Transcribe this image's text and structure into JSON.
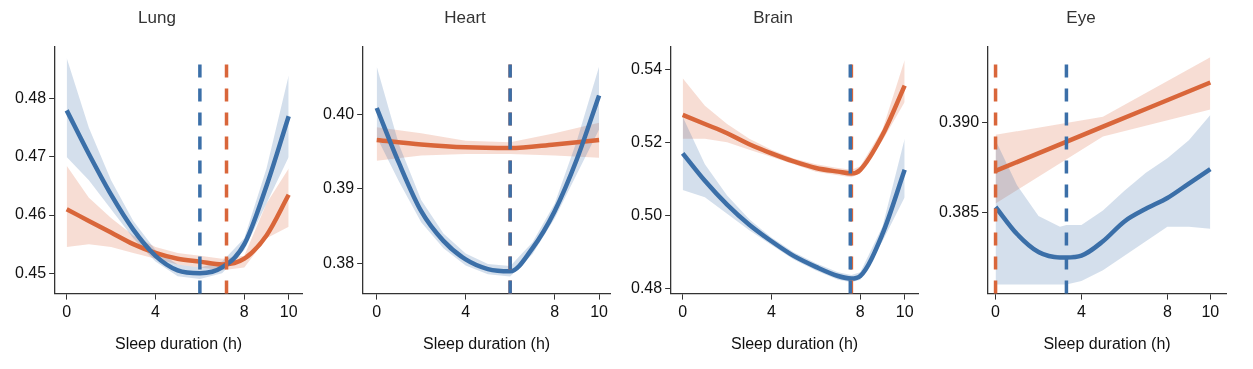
{
  "chart_data": [
    {
      "type": "line",
      "title": "Lung",
      "xlabel": "Sleep duration (h)",
      "xlim": [
        -0.52,
        10.6
      ],
      "xticks": [
        0,
        4,
        8,
        10
      ],
      "ylim": [
        0.4465,
        0.489
      ],
      "yticks": [
        0.45,
        0.46,
        0.47,
        0.48
      ],
      "series": [
        {
          "color": "#3b6fa8",
          "x": [
            0,
            1,
            2,
            3,
            4,
            5,
            6,
            7,
            8,
            9,
            10
          ],
          "values": [
            0.478,
            0.4705,
            0.4635,
            0.4575,
            0.453,
            0.4505,
            0.45,
            0.451,
            0.455,
            0.465,
            0.477
          ],
          "lower": [
            0.47,
            0.466,
            0.461,
            0.456,
            0.452,
            0.4495,
            0.449,
            0.45,
            0.454,
            0.462,
            0.47
          ],
          "upper": [
            0.487,
            0.475,
            0.466,
            0.459,
            0.454,
            0.4515,
            0.451,
            0.452,
            0.456,
            0.468,
            0.484
          ]
        },
        {
          "color": "#d9663a",
          "x": [
            0,
            1,
            2,
            3,
            4,
            5,
            6,
            7,
            8,
            9,
            10
          ],
          "values": [
            0.461,
            0.459,
            0.457,
            0.455,
            0.4535,
            0.4525,
            0.452,
            0.4515,
            0.4525,
            0.4565,
            0.4635
          ],
          "lower": [
            0.4545,
            0.455,
            0.4545,
            0.4535,
            0.4525,
            0.4515,
            0.451,
            0.4505,
            0.451,
            0.456,
            0.458
          ],
          "upper": [
            0.4685,
            0.463,
            0.4595,
            0.4565,
            0.4545,
            0.4535,
            0.453,
            0.4525,
            0.453,
            0.462,
            0.468
          ]
        }
      ],
      "ref_lines": [
        {
          "axis": "x",
          "value": 6.0,
          "color": "#3b6fa8",
          "line_style": "dashed"
        },
        {
          "axis": "x",
          "value": 7.2,
          "color": "#d9663a",
          "line_style": "dashed"
        }
      ]
    },
    {
      "type": "line",
      "title": "Heart",
      "xlabel": "Sleep duration (h)",
      "xlim": [
        -0.61,
        10.49
      ],
      "xticks": [
        0,
        4,
        8,
        10
      ],
      "ylim": [
        0.3759,
        0.4092
      ],
      "yticks": [
        0.38,
        0.39,
        {
          "value": 0.4,
          "label": "0.40"
        }
      ],
      "series": [
        {
          "color": "#3b6fa8",
          "x": [
            0,
            1,
            2,
            3,
            4,
            5,
            6,
            7,
            8,
            9,
            10
          ],
          "values": [
            0.4009,
            0.3935,
            0.387,
            0.383,
            0.3805,
            0.3792,
            0.3789,
            0.382,
            0.387,
            0.394,
            0.4026
          ],
          "lower": [
            0.397,
            0.391,
            0.3855,
            0.382,
            0.3797,
            0.3785,
            0.3782,
            0.3812,
            0.386,
            0.392,
            0.398
          ],
          "upper": [
            0.4065,
            0.396,
            0.3885,
            0.384,
            0.3813,
            0.3799,
            0.3796,
            0.3828,
            0.388,
            0.3965,
            0.4065
          ]
        },
        {
          "color": "#d9663a",
          "x": [
            0,
            2,
            4,
            6,
            8,
            10
          ],
          "values": [
            0.3966,
            0.396,
            0.3956,
            0.3955,
            0.396,
            0.3966
          ],
          "lower": [
            0.3938,
            0.3945,
            0.3947,
            0.3947,
            0.3945,
            0.3942
          ],
          "upper": [
            0.3983,
            0.3975,
            0.3965,
            0.3963,
            0.3975,
            0.3989
          ]
        }
      ],
      "ref_lines": [
        {
          "axis": "x",
          "value": 6.0,
          "color": "#d9663a",
          "line_style": "dashed"
        },
        {
          "axis": "x",
          "value": 6.0,
          "color": "#3b6fa8",
          "line_style": "dashed"
        }
      ]
    },
    {
      "type": "line",
      "title": "Brain",
      "xlabel": "Sleep duration (h)",
      "xlim": [
        -0.52,
        10.6
      ],
      "xticks": [
        0,
        4,
        8,
        10
      ],
      "ylim": [
        0.4787,
        0.5462
      ],
      "yticks": [
        0.48,
        {
          "value": 0.5,
          "label": "0.50"
        },
        0.52,
        0.54
      ],
      "series": [
        {
          "color": "#3b6fa8",
          "x": [
            0,
            1,
            2,
            3,
            4,
            5,
            6,
            7,
            7.6,
            8,
            9,
            10
          ],
          "values": [
            0.517,
            0.5095,
            0.503,
            0.4975,
            0.493,
            0.489,
            0.486,
            0.4835,
            0.4828,
            0.4835,
            0.495,
            0.5125
          ],
          "lower": [
            0.507,
            0.505,
            0.5005,
            0.496,
            0.492,
            0.488,
            0.485,
            0.4825,
            0.4818,
            0.4825,
            0.493,
            0.505
          ],
          "upper": [
            0.527,
            0.514,
            0.5055,
            0.499,
            0.494,
            0.49,
            0.487,
            0.4845,
            0.4838,
            0.4845,
            0.497,
            0.521
          ]
        },
        {
          "color": "#d9663a",
          "x": [
            0,
            1,
            2,
            3,
            4,
            5,
            6,
            7,
            7.6,
            8,
            9,
            10
          ],
          "values": [
            0.5275,
            0.525,
            0.5225,
            0.5195,
            0.517,
            0.5148,
            0.513,
            0.512,
            0.5115,
            0.5125,
            0.522,
            0.5355
          ],
          "lower": [
            0.521,
            0.521,
            0.52,
            0.518,
            0.516,
            0.514,
            0.512,
            0.511,
            0.5105,
            0.5115,
            0.5205,
            0.531
          ],
          "upper": [
            0.5375,
            0.53,
            0.525,
            0.521,
            0.518,
            0.5156,
            0.514,
            0.513,
            0.5125,
            0.5135,
            0.5235,
            0.5425
          ]
        }
      ],
      "ref_lines": [
        {
          "axis": "x",
          "value": 7.6,
          "color": "#d9663a",
          "line_style": "dashed"
        },
        {
          "axis": "x",
          "value": 7.55,
          "color": "#3b6fa8",
          "line_style": "dashed"
        }
      ]
    },
    {
      "type": "line",
      "title": "Eye",
      "xlabel": "Sleep duration (h)",
      "xlim": [
        -0.35,
        10.73
      ],
      "xticks": [
        0,
        4,
        8,
        10
      ],
      "ylim": [
        0.3805,
        0.3942
      ],
      "yticks": [
        0.385,
        {
          "value": 0.39,
          "label": "0.390"
        }
      ],
      "series": [
        {
          "color": "#3b6fa8",
          "x": [
            0,
            1,
            2,
            3,
            3.3,
            4,
            5,
            6,
            7,
            8,
            9,
            10
          ],
          "values": [
            0.3853,
            0.3838,
            0.3828,
            0.3825,
            0.3825,
            0.3826,
            0.3834,
            0.3845,
            0.3852,
            0.3858,
            0.3866,
            0.3874
          ],
          "lower": [
            0.381,
            0.381,
            0.381,
            0.381,
            0.381,
            0.3812,
            0.3818,
            0.3826,
            0.3834,
            0.3842,
            0.3842,
            0.3841
          ],
          "upper": [
            0.389,
            0.3865,
            0.3848,
            0.3842,
            0.3843,
            0.3843,
            0.3851,
            0.3862,
            0.3872,
            0.388,
            0.389,
            0.3904
          ]
        },
        {
          "color": "#d9663a",
          "x": [
            0,
            5,
            10
          ],
          "values": [
            0.3873,
            0.38975,
            0.3922
          ],
          "lower": [
            0.3855,
            0.3892,
            0.3907
          ],
          "upper": [
            0.3893,
            0.3903,
            0.3936
          ]
        }
      ],
      "ref_lines": [
        {
          "axis": "x",
          "value": 0,
          "color": "#d9663a",
          "line_style": "dashed"
        },
        {
          "axis": "x",
          "value": 3.3,
          "color": "#3b6fa8",
          "line_style": "dashed"
        }
      ]
    }
  ]
}
